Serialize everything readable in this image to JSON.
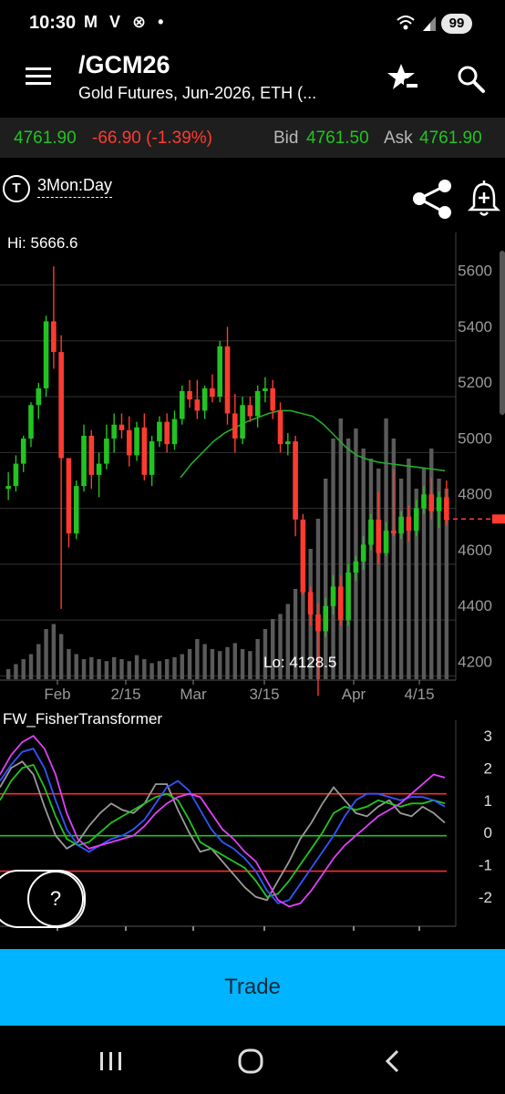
{
  "status_bar": {
    "time": "10:30",
    "left_icons": "M V ⊗ •",
    "battery": "99"
  },
  "header": {
    "title": "/GCM26",
    "subtitle": "Gold Futures, Jun-2026, ETH (..."
  },
  "quote": {
    "last": "4761.90",
    "change": "-66.90 (-1.39%)",
    "bid_label": "Bid",
    "bid": "4761.50",
    "ask_label": "Ask",
    "ask": "4761.90"
  },
  "chart_header": {
    "tf_icon": "T",
    "timeframe": "3Mon:Day"
  },
  "price_chart": {
    "hi_label": "Hi: 5666.6",
    "lo_label": "Lo: 4128.5",
    "y_ticks": [
      "5600",
      "5400",
      "5200",
      "5000",
      "4800",
      "4600",
      "4400",
      "4200"
    ],
    "x_ticks": [
      "Feb",
      "2/15",
      "Mar",
      "3/15",
      "Apr",
      "4/15"
    ]
  },
  "indicator": {
    "label": "FW_FisherTransformer",
    "y_ticks": [
      "3",
      "2",
      "1",
      "0",
      "-1",
      "-2"
    ]
  },
  "help": {
    "label": "?"
  },
  "trade": {
    "label": "Trade"
  },
  "colors": {
    "up": "#22c322",
    "down": "#ff3b30",
    "accent": "#00b4ff"
  },
  "chart_data": [
    {
      "type": "candlestick",
      "title": "",
      "x_ticks": [
        "Feb",
        "2/15",
        "Mar",
        "3/15",
        "Apr",
        "4/15"
      ],
      "y_ticks": [
        5600,
        5400,
        5200,
        5000,
        4800,
        4600,
        4400,
        4200
      ],
      "ylim": [
        4100,
        5700
      ],
      "high": 5666.6,
      "low": 4128.5,
      "last": 4761.9,
      "series": [
        {
          "type": "ohlc",
          "values": [
            [
              4870,
              4930,
              4830,
              4880
            ],
            [
              4880,
              4990,
              4860,
              4960
            ],
            [
              4960,
              5060,
              4930,
              5050
            ],
            [
              5050,
              5180,
              5020,
              5170
            ],
            [
              5170,
              5250,
              5120,
              5230
            ],
            [
              5230,
              5490,
              5200,
              5470
            ],
            [
              5470,
              5666.6,
              5300,
              5360
            ],
            [
              5360,
              5420,
              4440,
              4980
            ],
            [
              4980,
              4980,
              4660,
              4710
            ],
            [
              4710,
              4900,
              4690,
              4880
            ],
            [
              4880,
              5100,
              4860,
              5060
            ],
            [
              5060,
              5080,
              4870,
              4920
            ],
            [
              4920,
              5000,
              4840,
              4960
            ],
            [
              4960,
              5100,
              4940,
              5050
            ],
            [
              5050,
              5140,
              5000,
              5100
            ],
            [
              5100,
              5140,
              5050,
              5080
            ],
            [
              5080,
              5130,
              4950,
              4990
            ],
            [
              4990,
              5110,
              4970,
              5090
            ],
            [
              5090,
              5140,
              4900,
              4920
            ],
            [
              4920,
              5060,
              4880,
              5040
            ],
            [
              5040,
              5130,
              5020,
              5110
            ],
            [
              5110,
              5140,
              5000,
              5030
            ],
            [
              5030,
              5150,
              5010,
              5120
            ],
            [
              5120,
              5240,
              5100,
              5220
            ],
            [
              5220,
              5260,
              5160,
              5190
            ],
            [
              5190,
              5260,
              5120,
              5150
            ],
            [
              5150,
              5240,
              5120,
              5230
            ],
            [
              5230,
              5280,
              5180,
              5200
            ],
            [
              5200,
              5400,
              5180,
              5380
            ],
            [
              5380,
              5450,
              5100,
              5140
            ],
            [
              5140,
              5210,
              5000,
              5050
            ],
            [
              5050,
              5200,
              5030,
              5170
            ],
            [
              5170,
              5200,
              5110,
              5130
            ],
            [
              5130,
              5240,
              5090,
              5220
            ],
            [
              5220,
              5270,
              5180,
              5230
            ],
            [
              5230,
              5260,
              5120,
              5150
            ],
            [
              5150,
              5180,
              5000,
              5030
            ],
            [
              5030,
              5070,
              4990,
              5040
            ],
            [
              5040,
              5060,
              4700,
              4760
            ],
            [
              4760,
              4780,
              4490,
              4500
            ],
            [
              4500,
              4520,
              4380,
              4420
            ],
            [
              4420,
              4460,
              4128.5,
              4360
            ],
            [
              4360,
              4480,
              4340,
              4450
            ],
            [
              4450,
              4560,
              4420,
              4520
            ],
            [
              4520,
              4560,
              4380,
              4400
            ],
            [
              4400,
              4600,
              4380,
              4570
            ],
            [
              4570,
              4630,
              4540,
              4610
            ],
            [
              4610,
              4700,
              4580,
              4670
            ],
            [
              4670,
              4780,
              4650,
              4760
            ],
            [
              4760,
              4860,
              4600,
              4640
            ],
            [
              4640,
              4750,
              4630,
              4720
            ],
            [
              4720,
              4940,
              4700,
              4710
            ],
            [
              4710,
              4790,
              4690,
              4770
            ],
            [
              4770,
              4810,
              4680,
              4720
            ],
            [
              4720,
              4830,
              4700,
              4800
            ],
            [
              4800,
              4880,
              4780,
              4850
            ],
            [
              4850,
              4910,
              4760,
              4790
            ],
            [
              4790,
              4860,
              4730,
              4840
            ],
            [
              4840,
              4900,
              4740,
              4760
            ]
          ]
        },
        {
          "type": "volume",
          "values": [
            0.1,
            0.15,
            0.2,
            0.25,
            0.35,
            0.5,
            0.55,
            0.45,
            0.3,
            0.25,
            0.2,
            0.22,
            0.2,
            0.18,
            0.22,
            0.2,
            0.18,
            0.24,
            0.2,
            0.16,
            0.18,
            0.2,
            0.22,
            0.25,
            0.3,
            0.4,
            0.35,
            0.3,
            0.28,
            0.32,
            0.36,
            0.3,
            0.28,
            0.4,
            0.5,
            0.6,
            0.65,
            0.75,
            0.9,
            1.0,
            1.3,
            1.6,
            2.0,
            2.4,
            2.6,
            2.4,
            2.5,
            2.3,
            2.2,
            2.1,
            2.6,
            2.4,
            2.0,
            2.2,
            1.9,
            2.1,
            2.3,
            2.0,
            1.9
          ]
        },
        {
          "type": "moving_average",
          "values": [
            4910,
            4960,
            5000,
            5040,
            5070,
            5090,
            5110,
            5125,
            5140,
            5150,
            5150,
            5140,
            5130,
            5100,
            5060,
            5020,
            4990,
            4975,
            4965,
            4960,
            4955,
            4950,
            4945,
            4940,
            4935
          ]
        }
      ]
    },
    {
      "type": "line",
      "title": "FW_FisherTransformer",
      "y_ticks": [
        3,
        2,
        1,
        0,
        -1,
        -2
      ],
      "ylim": [
        -2.6,
        3.2
      ],
      "reference_lines": [
        1.2,
        -0.1,
        -1.2
      ],
      "series": [
        {
          "color": "#e040fb",
          "values": [
            1.8,
            2.4,
            2.8,
            3.0,
            2.6,
            1.8,
            0.6,
            -0.2,
            -0.5,
            -0.4,
            -0.3,
            -0.2,
            -0.1,
            0.2,
            0.6,
            0.9,
            1.1,
            1.2,
            1.1,
            0.6,
            0.1,
            -0.2,
            -0.6,
            -0.9,
            -1.5,
            -2.1,
            -2.3,
            -2.2,
            -1.8,
            -1.3,
            -0.8,
            -0.4,
            -0.1,
            0.2,
            0.5,
            0.7,
            0.9,
            1.2,
            1.5,
            1.8,
            1.7
          ]
        },
        {
          "color": "#3355ff",
          "values": [
            1.6,
            2.1,
            2.5,
            2.6,
            2.0,
            1.0,
            0.1,
            -0.4,
            -0.6,
            -0.4,
            -0.2,
            -0.1,
            0.1,
            0.4,
            0.9,
            1.4,
            1.6,
            1.3,
            0.7,
            0.1,
            -0.3,
            -0.5,
            -0.8,
            -1.2,
            -1.8,
            -2.2,
            -2.1,
            -1.6,
            -1.1,
            -0.6,
            -0.1,
            0.5,
            1.0,
            1.2,
            1.2,
            1.1,
            1.0,
            1.1,
            1.1,
            1.0,
            0.8
          ]
        },
        {
          "color": "#22c322",
          "values": [
            1.0,
            1.6,
            2.0,
            2.1,
            1.4,
            0.5,
            -0.2,
            -0.4,
            -0.3,
            0.0,
            0.3,
            0.5,
            0.7,
            0.9,
            1.1,
            1.2,
            1.0,
            0.4,
            -0.3,
            -0.5,
            -0.7,
            -0.9,
            -1.1,
            -1.5,
            -2.0,
            -1.9,
            -1.5,
            -1.0,
            -0.5,
            0.0,
            0.6,
            0.8,
            0.7,
            0.8,
            1.0,
            0.9,
            0.8,
            0.9,
            0.9,
            1.0,
            0.9
          ]
        },
        {
          "color": "#9a9a9a",
          "values": [
            1.4,
            2.0,
            2.2,
            1.8,
            0.8,
            -0.1,
            -0.5,
            -0.3,
            0.2,
            0.6,
            0.9,
            0.7,
            0.6,
            0.9,
            1.5,
            1.5,
            0.7,
            0.0,
            -0.6,
            -0.5,
            -0.9,
            -1.3,
            -1.7,
            -2.0,
            -2.1,
            -1.5,
            -0.9,
            -0.2,
            0.3,
            0.9,
            1.4,
            1.0,
            0.6,
            0.5,
            0.8,
            1.0,
            0.6,
            0.5,
            0.8,
            0.6,
            0.3
          ]
        }
      ]
    }
  ]
}
